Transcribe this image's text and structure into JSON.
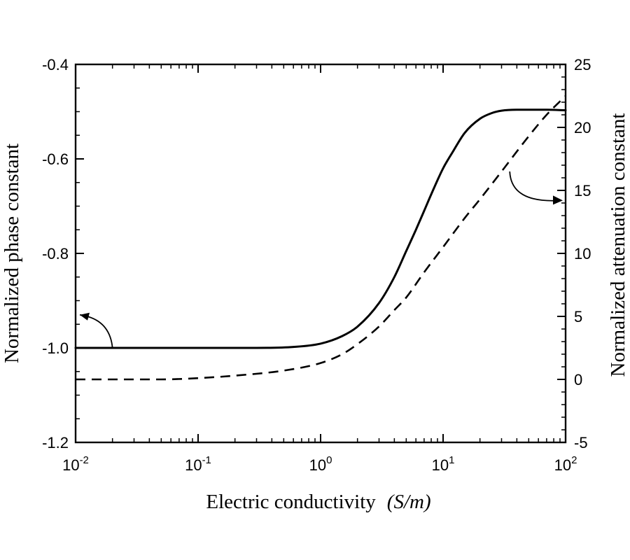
{
  "chart_data": {
    "type": "line",
    "x_scale": "log",
    "xlim": [
      0.01,
      100
    ],
    "ylim_left": [
      -1.2,
      -0.4
    ],
    "ylim_right": [
      -5,
      25
    ],
    "xlabel": "Electric conductivity",
    "xlabel_unit": "(S/m)",
    "ylabel_left": "Normalized phase constant",
    "ylabel_right": "Normalized attenuation constant",
    "grid": false,
    "x_ticks": [
      {
        "value": 0.01,
        "base": "10",
        "exp": "-2"
      },
      {
        "value": 0.1,
        "base": "10",
        "exp": "-1"
      },
      {
        "value": 1,
        "base": "10",
        "exp": "0"
      },
      {
        "value": 10,
        "base": "10",
        "exp": "1"
      },
      {
        "value": 100,
        "base": "10",
        "exp": "2"
      }
    ],
    "y_left_ticks": [
      {
        "value": -0.4,
        "label": "-0.4"
      },
      {
        "value": -0.6,
        "label": "-0.6"
      },
      {
        "value": -0.8,
        "label": "-0.8"
      },
      {
        "value": -1.0,
        "label": "-1.0"
      },
      {
        "value": -1.2,
        "label": "-1.2"
      }
    ],
    "y_right_ticks": [
      {
        "value": 25,
        "label": "25"
      },
      {
        "value": 20,
        "label": "20"
      },
      {
        "value": 15,
        "label": "15"
      },
      {
        "value": 10,
        "label": "10"
      },
      {
        "value": 5,
        "label": "5"
      },
      {
        "value": 0,
        "label": "0"
      },
      {
        "value": -5,
        "label": "-5"
      }
    ],
    "series": [
      {
        "axis": "left",
        "style": "solid",
        "x": [
          0.01,
          0.1,
          0.3,
          0.6,
          1,
          1.5,
          2,
          3,
          4,
          5,
          6,
          7,
          8,
          10,
          12,
          15,
          20,
          25,
          30,
          40,
          50,
          70,
          100
        ],
        "y": [
          -1.0,
          -1.0,
          -1.0,
          -0.998,
          -0.991,
          -0.975,
          -0.955,
          -0.905,
          -0.85,
          -0.795,
          -0.75,
          -0.71,
          -0.675,
          -0.62,
          -0.585,
          -0.545,
          -0.515,
          -0.503,
          -0.498,
          -0.496,
          -0.496,
          -0.496,
          -0.497
        ]
      },
      {
        "axis": "right",
        "style": "dashed",
        "x": [
          0.01,
          0.05,
          0.1,
          0.2,
          0.5,
          1,
          1.5,
          2,
          3,
          4,
          5,
          7,
          10,
          15,
          20,
          30,
          50,
          70,
          100
        ],
        "y": [
          0,
          0,
          0.1,
          0.3,
          0.7,
          1.3,
          2,
          2.8,
          4.2,
          5.5,
          6.5,
          8.5,
          10.5,
          12.8,
          14.3,
          16.5,
          19.3,
          21,
          22.5
        ]
      }
    ],
    "annotations": [
      {
        "type": "arrow",
        "points_to": "left-axis",
        "near_x": 0.02,
        "near_y_left": -1.0
      },
      {
        "type": "arrow",
        "points_to": "right-axis",
        "near_x": 35,
        "near_y_right": 16.5
      }
    ]
  }
}
